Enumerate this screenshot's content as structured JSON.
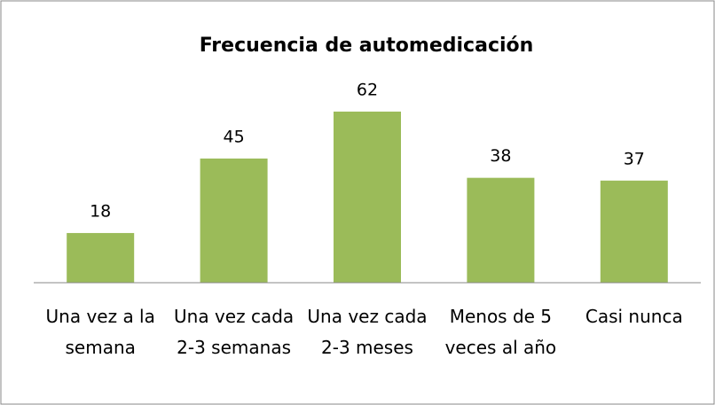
{
  "chart_data": {
    "type": "bar",
    "title": "Frecuencia de automedicación",
    "categories": [
      "Una vez a la semana",
      "Una vez cada 2-3 semanas",
      "Una vez cada 2-3 meses",
      "Menos de 5 veces al año",
      "Casi nunca"
    ],
    "values": [
      18,
      45,
      62,
      38,
      37
    ],
    "color": "#9bbb59",
    "ylim": [
      0,
      70
    ],
    "grid": false
  }
}
